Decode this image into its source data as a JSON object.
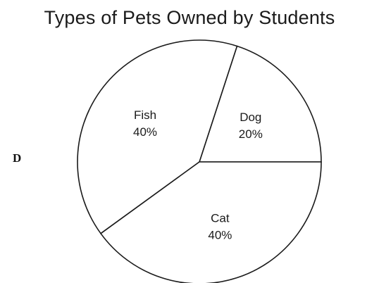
{
  "option_letter": "D",
  "chart_data": {
    "type": "pie",
    "title": "Types of Pets Owned by Students",
    "slices": [
      {
        "label": "Dog",
        "value": 20,
        "display": "20%"
      },
      {
        "label": "Fish",
        "value": 40,
        "display": "40%"
      },
      {
        "label": "Cat",
        "value": 40,
        "display": "40%"
      }
    ],
    "colors": {
      "fill": "#ffffff",
      "stroke": "#1a1a1a"
    }
  }
}
